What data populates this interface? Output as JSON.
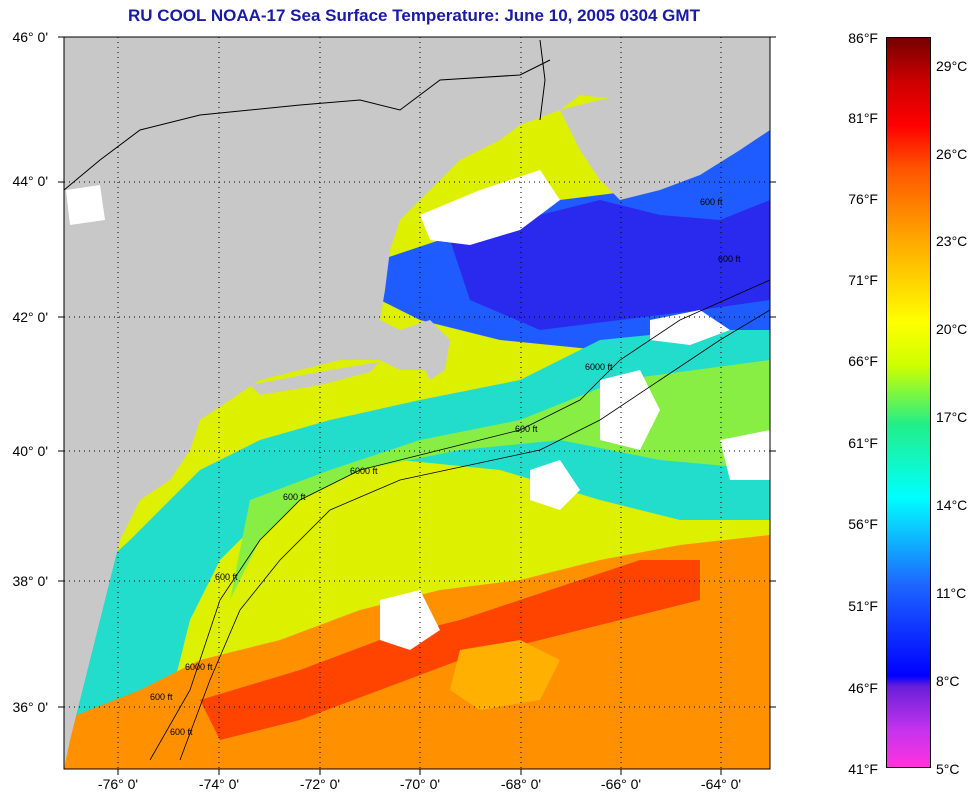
{
  "title": "RU COOL  NOAA-17  Sea Surface Temperature:  June 10, 2005 0304 GMT",
  "lat_labels": [
    "46° 0'",
    "44° 0'",
    "42° 0'",
    "40° 0'",
    "38° 0'",
    "36° 0'"
  ],
  "lon_labels": [
    "-76° 0'",
    "-74° 0'",
    "-72° 0'",
    "-70° 0'",
    "-68° 0'",
    "-66° 0'",
    "-64° 0'"
  ],
  "colorbar": {
    "fahrenheit": [
      "86°F",
      "81°F",
      "76°F",
      "71°F",
      "66°F",
      "61°F",
      "56°F",
      "51°F",
      "46°F",
      "41°F"
    ],
    "celsius": [
      "29°C",
      "26°C",
      "23°C",
      "20°C",
      "17°C",
      "14°C",
      "11°C",
      "8°C",
      "5°C"
    ]
  },
  "contour_labels": [
    "600 ft",
    "6000 ft",
    "600 ft",
    "6000 ft",
    "600 ft",
    "600 ft",
    "600 ft",
    "6000 ft",
    "600 ft",
    "600 ft"
  ],
  "colors": {
    "land": "#c8c8c8",
    "cloud": "#ffffff",
    "title": "#1a1aa8"
  }
}
